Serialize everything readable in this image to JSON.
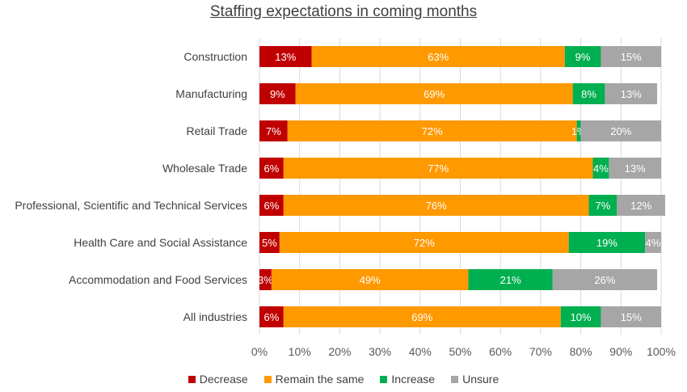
{
  "chart_data": {
    "type": "bar",
    "orientation": "horizontal",
    "stacked": true,
    "title": "Staffing expectations in coming months",
    "categories": [
      "Construction",
      "Manufacturing",
      "Retail Trade",
      "Wholesale Trade",
      "Professional, Scientific and Technical Services",
      "Health Care and Social Assistance",
      "Accommodation and Food Services",
      "All industries"
    ],
    "series": [
      {
        "name": "Decrease",
        "color": "#C00000",
        "values": [
          13,
          9,
          7,
          6,
          6,
          5,
          3,
          6
        ]
      },
      {
        "name": "Remain the same",
        "color": "#FF9900",
        "values": [
          63,
          69,
          72,
          77,
          76,
          72,
          49,
          69
        ]
      },
      {
        "name": "Increase",
        "color": "#00B050",
        "values": [
          9,
          8,
          1,
          4,
          7,
          19,
          21,
          10
        ]
      },
      {
        "name": "Unsure",
        "color": "#A6A6A6",
        "values": [
          15,
          13,
          20,
          13,
          12,
          4,
          26,
          15
        ]
      }
    ],
    "data_labels": [
      [
        "13%",
        "63%",
        "9%",
        "15%"
      ],
      [
        "9%",
        "69%",
        "8%",
        "13%"
      ],
      [
        "7%",
        "72%",
        "1%",
        "20%"
      ],
      [
        "6%",
        "77%",
        "4%",
        "13%"
      ],
      [
        "6%",
        "76%",
        "7%",
        "12%"
      ],
      [
        "5%",
        "72%",
        "19%",
        "4%"
      ],
      [
        "3%",
        "49%",
        "21%",
        "26%"
      ],
      [
        "6%",
        "69%",
        "10%",
        "15%"
      ]
    ],
    "xlim": [
      0,
      100
    ],
    "xticks": [
      "0%",
      "10%",
      "20%",
      "30%",
      "40%",
      "50%",
      "60%",
      "70%",
      "80%",
      "90%",
      "100%"
    ],
    "grid": true,
    "legend_position": "bottom"
  }
}
